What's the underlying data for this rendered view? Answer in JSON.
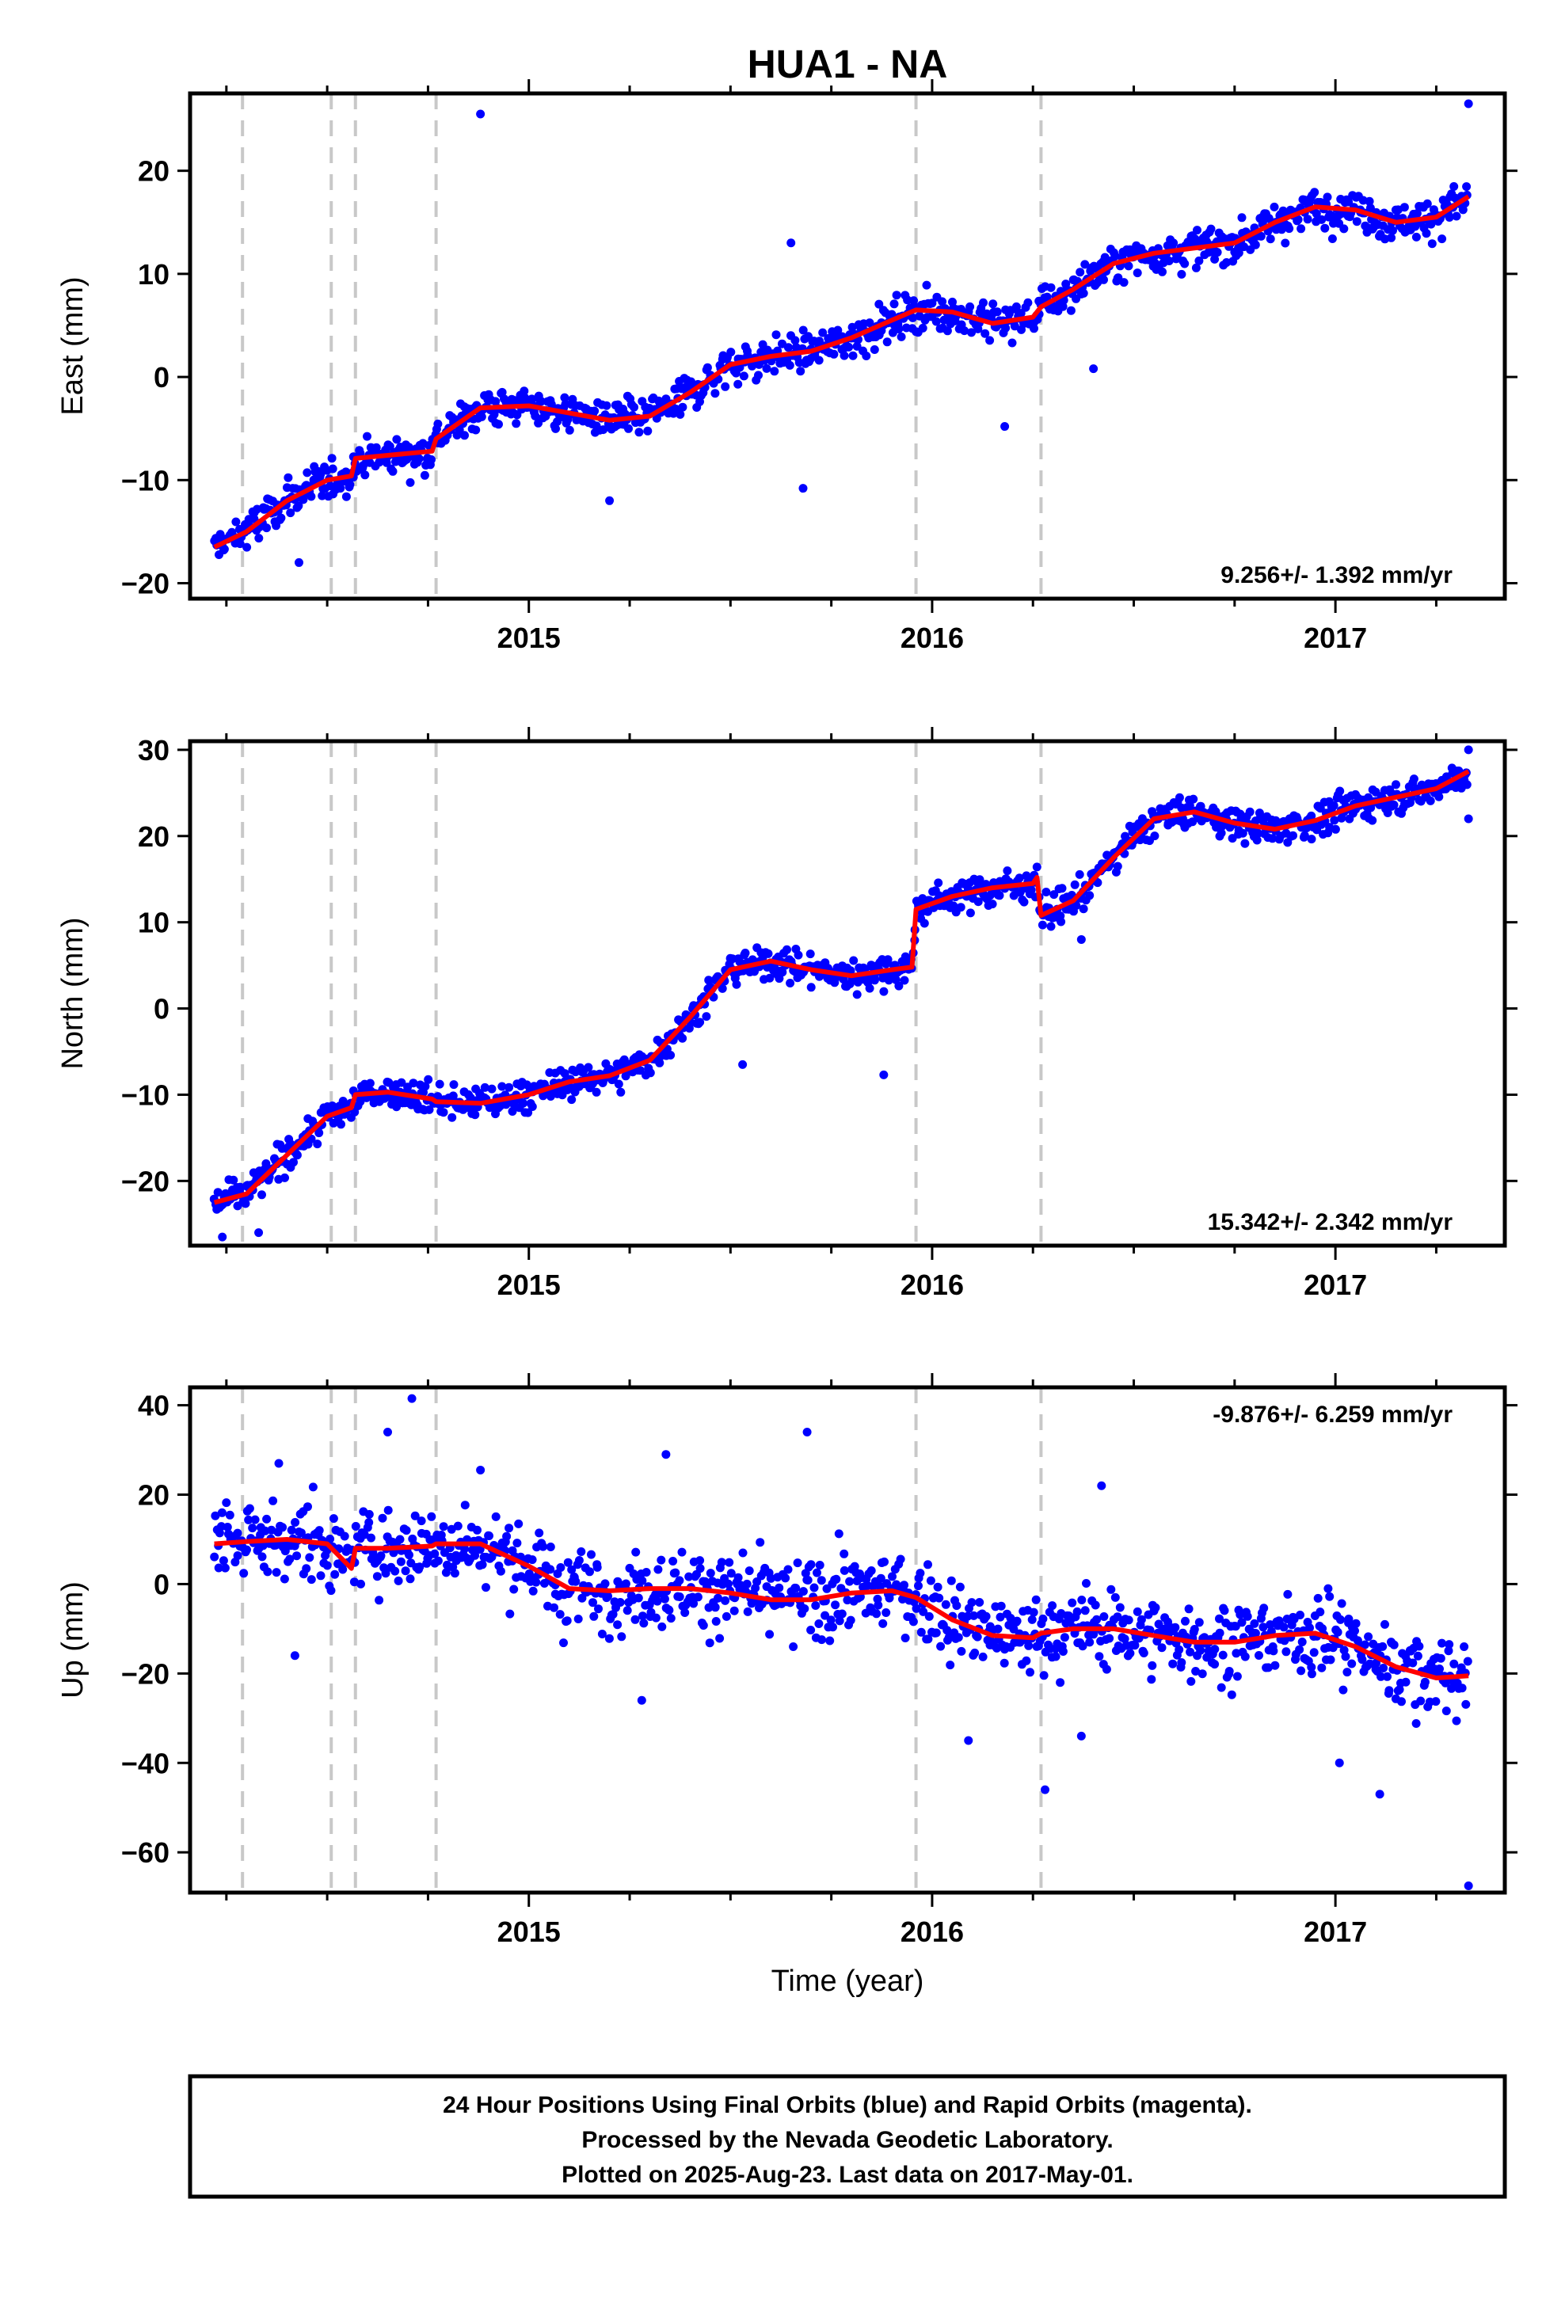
{
  "figure": {
    "title": "HUA1 - NA",
    "xlabel": "Time (year)",
    "footer_lines": [
      "24 Hour Positions Using Final Orbits (blue) and Rapid Orbits (magenta).",
      "Processed by the Nevada Geodetic Laboratory.",
      "Plotted on 2025-Aug-23. Last data on 2017-May-01."
    ],
    "colors": {
      "points": "#0000ff",
      "model": "#ff0000",
      "breaks": "#c8c8c8",
      "frame": "#000000"
    }
  },
  "chart_data": [
    {
      "type": "scatter",
      "name": "east",
      "ylabel": "East (mm)",
      "rate_label": "9.256+/- 1.392 mm/yr",
      "rate_position": "bottom-right",
      "xlim": [
        2014.16,
        2017.42
      ],
      "ylim": [
        -21.5,
        27.5
      ],
      "x_ticks": [
        2015,
        2016,
        2017
      ],
      "x_tick_labels": [
        "2015",
        "2016",
        "2017"
      ],
      "y_ticks": [
        -20,
        -10,
        0,
        10,
        20
      ],
      "y_tick_labels": [
        "−20",
        "−10",
        "0",
        "10",
        "20"
      ],
      "breaks": [
        2014.29,
        2014.51,
        2014.57,
        2014.77,
        2015.96,
        2016.27
      ],
      "model_curve": {
        "x": [
          2014.22,
          2014.3,
          2014.4,
          2014.5,
          2014.56,
          2014.57,
          2014.65,
          2014.76,
          2014.77,
          2014.88,
          2015.0,
          2015.1,
          2015.2,
          2015.3,
          2015.4,
          2015.5,
          2015.6,
          2015.7,
          2015.8,
          2015.9,
          2015.96,
          2016.05,
          2016.15,
          2016.25,
          2016.27,
          2016.35,
          2016.45,
          2016.55,
          2016.65,
          2016.75,
          2016.85,
          2016.95,
          2017.05,
          2017.15,
          2017.25,
          2017.33
        ],
        "y": [
          -16.5,
          -15.0,
          -12.0,
          -10.0,
          -9.6,
          -7.9,
          -7.6,
          -7.2,
          -6.0,
          -3.0,
          -2.8,
          -3.5,
          -4.2,
          -3.8,
          -1.5,
          1.2,
          2.0,
          2.5,
          3.8,
          5.5,
          6.5,
          6.3,
          5.2,
          5.8,
          6.8,
          8.5,
          11.0,
          12.0,
          12.5,
          13.0,
          15.0,
          16.5,
          16.2,
          15.0,
          15.5,
          17.5
        ]
      },
      "outliers": [
        [
          2014.88,
          25.5
        ],
        [
          2015.2,
          -12.0
        ],
        [
          2015.68,
          -10.8
        ],
        [
          2016.18,
          -4.8
        ],
        [
          2016.4,
          0.8
        ],
        [
          2015.65,
          13.0
        ],
        [
          2017.33,
          26.5
        ],
        [
          2014.43,
          -18.0
        ]
      ],
      "trend_samples": [
        [
          2014.2,
          -15.5
        ],
        [
          2014.5,
          -10.5
        ],
        [
          2014.8,
          -5.5
        ],
        [
          2015.0,
          -3.0
        ],
        [
          2015.25,
          -4.0
        ],
        [
          2015.5,
          2.0
        ],
        [
          2015.8,
          4.5
        ],
        [
          2016.0,
          7.0
        ],
        [
          2016.2,
          6.0
        ],
        [
          2016.4,
          10.0
        ],
        [
          2016.6,
          12.5
        ],
        [
          2016.8,
          14.0
        ],
        [
          2017.0,
          16.5
        ],
        [
          2017.2,
          15.5
        ],
        [
          2017.3,
          16.0
        ]
      ]
    },
    {
      "type": "scatter",
      "name": "north",
      "ylabel": "North (mm)",
      "rate_label": "15.342+/- 2.342 mm/yr",
      "rate_position": "bottom-right",
      "xlim": [
        2014.16,
        2017.42
      ],
      "ylim": [
        -27.5,
        31.0
      ],
      "x_ticks": [
        2015,
        2016,
        2017
      ],
      "x_tick_labels": [
        "2015",
        "2016",
        "2017"
      ],
      "y_ticks": [
        -20,
        -10,
        0,
        10,
        20,
        30
      ],
      "y_tick_labels": [
        "−20",
        "−10",
        "0",
        "10",
        "20",
        "30"
      ],
      "breaks": [
        2014.29,
        2014.51,
        2014.57,
        2014.77,
        2015.96,
        2016.27
      ],
      "model_curve": {
        "x": [
          2014.22,
          2014.3,
          2014.4,
          2014.5,
          2014.56,
          2014.57,
          2014.65,
          2014.76,
          2014.77,
          2014.88,
          2015.0,
          2015.1,
          2015.2,
          2015.3,
          2015.4,
          2015.5,
          2015.6,
          2015.7,
          2015.8,
          2015.9,
          2015.95,
          2015.96,
          2016.05,
          2016.15,
          2016.25,
          2016.26,
          2016.27,
          2016.35,
          2016.45,
          2016.55,
          2016.65,
          2016.75,
          2016.85,
          2016.95,
          2017.05,
          2017.15,
          2017.25,
          2017.33
        ],
        "y": [
          -22.5,
          -21.5,
          -17.0,
          -12.5,
          -11.5,
          -10.0,
          -9.7,
          -10.5,
          -10.8,
          -11.0,
          -10.0,
          -8.5,
          -7.8,
          -6.0,
          -1.0,
          4.5,
          5.5,
          4.5,
          3.8,
          4.5,
          4.8,
          11.5,
          13.0,
          14.0,
          14.5,
          15.2,
          10.8,
          12.5,
          17.5,
          22.0,
          22.8,
          21.5,
          20.8,
          21.8,
          23.5,
          24.5,
          25.5,
          27.5
        ]
      },
      "outliers": [
        [
          2015.53,
          -6.5
        ],
        [
          2015.88,
          -7.7
        ],
        [
          2016.37,
          8.0
        ],
        [
          2017.33,
          22.0
        ],
        [
          2017.33,
          30.0
        ],
        [
          2014.24,
          -26.5
        ],
        [
          2014.33,
          -26.0
        ]
      ],
      "trend_samples": [
        [
          2014.2,
          -22.0
        ],
        [
          2014.5,
          -13.0
        ],
        [
          2014.8,
          -10.0
        ],
        [
          2015.1,
          -9.0
        ],
        [
          2015.4,
          -2.0
        ],
        [
          2015.6,
          6.0
        ],
        [
          2015.9,
          4.0
        ],
        [
          2016.1,
          14.0
        ],
        [
          2016.3,
          12.0
        ],
        [
          2016.5,
          20.0
        ],
        [
          2016.8,
          21.0
        ],
        [
          2017.0,
          23.0
        ],
        [
          2017.3,
          27.0
        ]
      ]
    },
    {
      "type": "scatter",
      "name": "up",
      "ylabel": "Up (mm)",
      "rate_label": "-9.876+/- 6.259 mm/yr",
      "rate_position": "top-right",
      "xlim": [
        2014.16,
        2017.42
      ],
      "ylim": [
        -69.0,
        44.0
      ],
      "x_ticks": [
        2015,
        2016,
        2017
      ],
      "x_tick_labels": [
        "2015",
        "2016",
        "2017"
      ],
      "y_ticks": [
        -60,
        -40,
        -20,
        0,
        20,
        40
      ],
      "y_tick_labels": [
        "−60",
        "−40",
        "−20",
        "0",
        "20",
        "40"
      ],
      "breaks": [
        2014.29,
        2014.51,
        2014.57,
        2014.77,
        2015.96,
        2016.27
      ],
      "model_curve": {
        "x": [
          2014.22,
          2014.3,
          2014.4,
          2014.5,
          2014.56,
          2014.57,
          2014.65,
          2014.76,
          2014.77,
          2014.88,
          2015.0,
          2015.1,
          2015.2,
          2015.3,
          2015.4,
          2015.5,
          2015.6,
          2015.7,
          2015.8,
          2015.9,
          2015.96,
          2016.05,
          2016.15,
          2016.25,
          2016.27,
          2016.35,
          2016.45,
          2016.55,
          2016.65,
          2016.75,
          2016.85,
          2016.95,
          2017.05,
          2017.15,
          2017.25,
          2017.33
        ],
        "y": [
          9.0,
          9.5,
          10.0,
          9.0,
          3.5,
          8.0,
          8.0,
          8.5,
          9.0,
          9.0,
          4.0,
          -1.0,
          -1.5,
          -1.0,
          -1.0,
          -2.0,
          -3.5,
          -3.5,
          -2.0,
          -1.5,
          -3.0,
          -8.0,
          -11.5,
          -12.0,
          -11.0,
          -10.0,
          -10.0,
          -11.5,
          -13.0,
          -13.0,
          -11.5,
          -11.0,
          -14.0,
          -18.5,
          -21.0,
          -20.5
        ]
      },
      "outliers": [
        [
          2014.71,
          41.5
        ],
        [
          2014.65,
          34.0
        ],
        [
          2015.69,
          34.0
        ],
        [
          2015.34,
          29.0
        ],
        [
          2016.28,
          -46.0
        ],
        [
          2016.42,
          22.0
        ],
        [
          2015.28,
          -26.0
        ],
        [
          2017.11,
          -47.0
        ],
        [
          2017.33,
          -67.5
        ],
        [
          2017.01,
          -40.0
        ],
        [
          2016.09,
          -35.0
        ],
        [
          2014.38,
          27.0
        ],
        [
          2014.88,
          25.5
        ],
        [
          2014.42,
          -16.0
        ],
        [
          2016.37,
          -34.0
        ]
      ],
      "trend_samples": [
        [
          2014.2,
          10.0
        ],
        [
          2014.5,
          9.0
        ],
        [
          2014.8,
          8.0
        ],
        [
          2015.0,
          2.0
        ],
        [
          2015.3,
          -1.0
        ],
        [
          2015.6,
          -3.0
        ],
        [
          2015.9,
          -2.0
        ],
        [
          2016.1,
          -10.0
        ],
        [
          2016.4,
          -10.0
        ],
        [
          2016.7,
          -13.0
        ],
        [
          2016.9,
          -11.0
        ],
        [
          2017.1,
          -17.0
        ],
        [
          2017.3,
          -20.0
        ]
      ]
    }
  ]
}
